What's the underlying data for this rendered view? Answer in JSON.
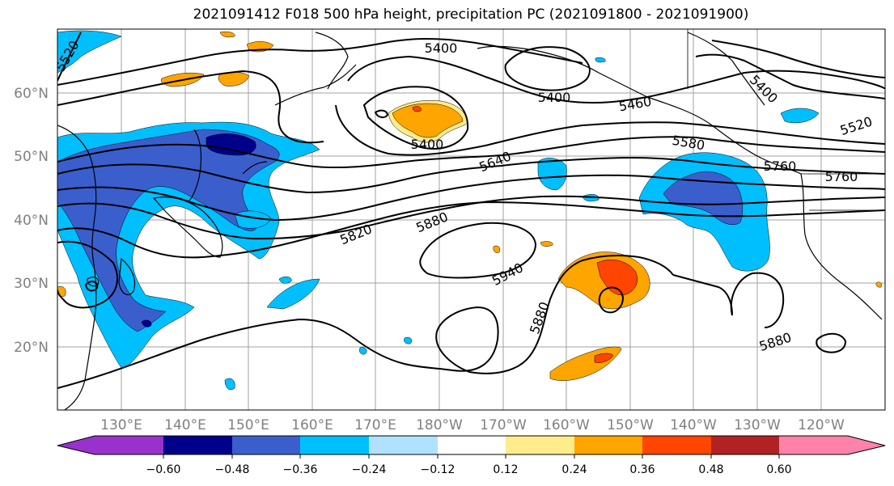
{
  "title": "2021091412 F018 500 hPa height, precipitation PC (2021091800 - 2021091900)",
  "lat_labels": [
    "60°N",
    "50°N",
    "40°N",
    "30°N",
    "20°N"
  ],
  "lon_labels": [
    "130°E",
    "140°E",
    "150°E",
    "160°E",
    "170°E",
    "180°W",
    "170°W",
    "160°W",
    "150°W",
    "140°W",
    "130°W",
    "120°W"
  ],
  "contour_labels": [
    "5400",
    "5400",
    "5400",
    "5400",
    "5460",
    "5520",
    "5520",
    "5580",
    "5640",
    "5760",
    "5760",
    "5820",
    "5880",
    "5880",
    "5880",
    "5940"
  ],
  "colorbar": {
    "colors": [
      "#9932cc",
      "#00008b",
      "#3a5fcd",
      "#00bfff",
      "#b0e2ff",
      "#ffffff",
      "#ffec8b",
      "#ffa500",
      "#ff4500",
      "#b22222",
      "#ff82ab"
    ],
    "ticks": [
      "−0.60",
      "−0.48",
      "−0.36",
      "−0.24",
      "−0.12",
      "0.12",
      "0.24",
      "0.36",
      "0.48",
      "0.60"
    ]
  }
}
